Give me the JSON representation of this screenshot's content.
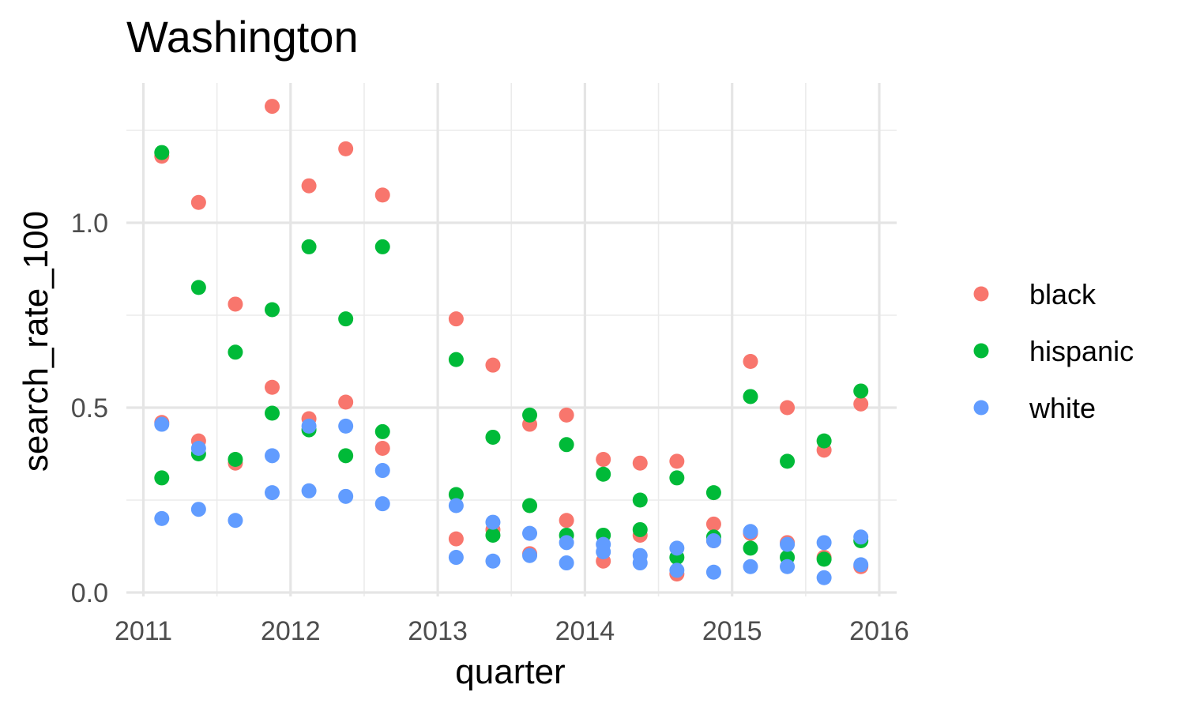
{
  "chart_data": {
    "type": "scatter",
    "title": "Washington",
    "xlabel": "quarter",
    "ylabel": "search_rate_100",
    "xlim": [
      2011.0,
      2016.0
    ],
    "ylim": [
      0.0,
      1.25
    ],
    "x_ticks": [
      "2011",
      "2012",
      "2013",
      "2014",
      "2015",
      "2016"
    ],
    "y_ticks": [
      "0.0",
      "0.5",
      "1.0"
    ],
    "grid": true,
    "legend_position": "right",
    "series": [
      {
        "name": "black",
        "color": "#F8766D",
        "points": [
          [
            2011.125,
            1.18
          ],
          [
            2011.125,
            0.46
          ],
          [
            2011.375,
            1.055
          ],
          [
            2011.375,
            0.41
          ],
          [
            2011.625,
            0.78
          ],
          [
            2011.625,
            0.35
          ],
          [
            2011.875,
            1.315
          ],
          [
            2011.875,
            0.555
          ],
          [
            2012.125,
            1.1
          ],
          [
            2012.125,
            0.47
          ],
          [
            2012.375,
            1.2
          ],
          [
            2012.375,
            0.515
          ],
          [
            2012.625,
            1.075
          ],
          [
            2012.625,
            0.39
          ],
          [
            2013.125,
            0.74
          ],
          [
            2013.125,
            0.145
          ],
          [
            2013.375,
            0.615
          ],
          [
            2013.375,
            0.17
          ],
          [
            2013.625,
            0.455
          ],
          [
            2013.625,
            0.105
          ],
          [
            2013.875,
            0.48
          ],
          [
            2013.875,
            0.195
          ],
          [
            2014.125,
            0.36
          ],
          [
            2014.125,
            0.085
          ],
          [
            2014.375,
            0.35
          ],
          [
            2014.375,
            0.155
          ],
          [
            2014.625,
            0.355
          ],
          [
            2014.625,
            0.05
          ],
          [
            2014.875,
            0.185
          ],
          [
            2014.875,
            0.14
          ],
          [
            2015.125,
            0.625
          ],
          [
            2015.125,
            0.16
          ],
          [
            2015.375,
            0.5
          ],
          [
            2015.375,
            0.135
          ],
          [
            2015.625,
            0.385
          ],
          [
            2015.625,
            0.095
          ],
          [
            2015.875,
            0.51
          ],
          [
            2015.875,
            0.07
          ]
        ]
      },
      {
        "name": "hispanic",
        "color": "#00BA38",
        "points": [
          [
            2011.125,
            1.19
          ],
          [
            2011.125,
            0.31
          ],
          [
            2011.375,
            0.825
          ],
          [
            2011.375,
            0.375
          ],
          [
            2011.625,
            0.65
          ],
          [
            2011.625,
            0.36
          ],
          [
            2011.875,
            0.765
          ],
          [
            2011.875,
            0.485
          ],
          [
            2012.125,
            0.935
          ],
          [
            2012.125,
            0.44
          ],
          [
            2012.375,
            0.74
          ],
          [
            2012.375,
            0.37
          ],
          [
            2012.625,
            0.935
          ],
          [
            2012.625,
            0.435
          ],
          [
            2013.125,
            0.63
          ],
          [
            2013.125,
            0.265
          ],
          [
            2013.375,
            0.42
          ],
          [
            2013.375,
            0.155
          ],
          [
            2013.625,
            0.48
          ],
          [
            2013.625,
            0.235
          ],
          [
            2013.875,
            0.4
          ],
          [
            2013.875,
            0.155
          ],
          [
            2014.125,
            0.32
          ],
          [
            2014.125,
            0.155
          ],
          [
            2014.375,
            0.25
          ],
          [
            2014.375,
            0.17
          ],
          [
            2014.625,
            0.31
          ],
          [
            2014.625,
            0.095
          ],
          [
            2014.875,
            0.27
          ],
          [
            2014.875,
            0.15
          ],
          [
            2015.125,
            0.53
          ],
          [
            2015.125,
            0.12
          ],
          [
            2015.375,
            0.355
          ],
          [
            2015.375,
            0.095
          ],
          [
            2015.625,
            0.41
          ],
          [
            2015.625,
            0.09
          ],
          [
            2015.875,
            0.545
          ],
          [
            2015.875,
            0.14
          ]
        ]
      },
      {
        "name": "white",
        "color": "#619CFF",
        "points": [
          [
            2011.125,
            0.455
          ],
          [
            2011.125,
            0.2
          ],
          [
            2011.375,
            0.39
          ],
          [
            2011.375,
            0.225
          ],
          [
            2011.625,
            0.195
          ],
          [
            2011.875,
            0.37
          ],
          [
            2011.875,
            0.27
          ],
          [
            2012.125,
            0.45
          ],
          [
            2012.125,
            0.275
          ],
          [
            2012.375,
            0.45
          ],
          [
            2012.375,
            0.26
          ],
          [
            2012.625,
            0.33
          ],
          [
            2012.625,
            0.24
          ],
          [
            2013.125,
            0.235
          ],
          [
            2013.125,
            0.095
          ],
          [
            2013.375,
            0.19
          ],
          [
            2013.375,
            0.085
          ],
          [
            2013.625,
            0.16
          ],
          [
            2013.625,
            0.1
          ],
          [
            2013.875,
            0.135
          ],
          [
            2013.875,
            0.08
          ],
          [
            2014.125,
            0.13
          ],
          [
            2014.125,
            0.11
          ],
          [
            2014.375,
            0.1
          ],
          [
            2014.375,
            0.08
          ],
          [
            2014.625,
            0.12
          ],
          [
            2014.625,
            0.06
          ],
          [
            2014.875,
            0.14
          ],
          [
            2014.875,
            0.055
          ],
          [
            2015.125,
            0.165
          ],
          [
            2015.125,
            0.07
          ],
          [
            2015.375,
            0.13
          ],
          [
            2015.375,
            0.07
          ],
          [
            2015.625,
            0.135
          ],
          [
            2015.625,
            0.04
          ],
          [
            2015.875,
            0.15
          ],
          [
            2015.875,
            0.075
          ]
        ]
      }
    ]
  }
}
